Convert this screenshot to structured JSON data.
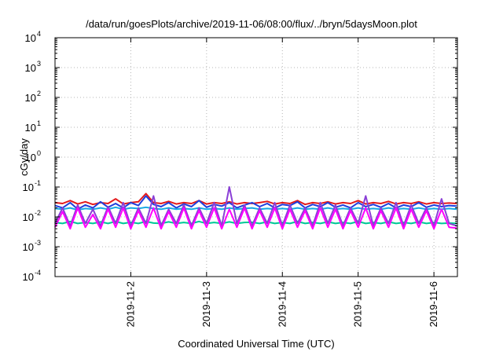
{
  "chart_data": {
    "type": "line",
    "title": "/data/run/goesPlots/archive/2019-11-06/08:00/flux/../bryn/5daysMoon.plot",
    "xlabel": "Coordinated Universal Time (UTC)",
    "ylabel": "cGy/day",
    "yscale": "log",
    "ylim": [
      0.0001,
      10000
    ],
    "xlim": [
      0.0,
      5.31
    ],
    "y_ticks": [
      {
        "value": -4,
        "base": "10",
        "exp": "-4"
      },
      {
        "value": -3,
        "base": "10",
        "exp": "-3"
      },
      {
        "value": -2,
        "base": "10",
        "exp": "-2"
      },
      {
        "value": -1,
        "base": "10",
        "exp": "-1"
      },
      {
        "value": 0,
        "base": "10",
        "exp": "0"
      },
      {
        "value": 1,
        "base": "10",
        "exp": "1"
      },
      {
        "value": 2,
        "base": "10",
        "exp": "2"
      },
      {
        "value": 3,
        "base": "10",
        "exp": "3"
      },
      {
        "value": 4,
        "base": "10",
        "exp": "4"
      }
    ],
    "x_ticks": [
      {
        "value": 1.0,
        "label": "2019-11-2"
      },
      {
        "value": 2.0,
        "label": "2019-11-3"
      },
      {
        "value": 3.0,
        "label": "2019-11-4"
      },
      {
        "value": 4.0,
        "label": "2019-11-5"
      },
      {
        "value": 5.0,
        "label": "2019-11-6"
      }
    ],
    "grid": true,
    "legend": "none",
    "series": [
      {
        "color": "#e41a1c",
        "x": [
          0.0,
          0.1,
          0.2,
          0.3,
          0.4,
          0.5,
          0.6,
          0.7,
          0.8,
          0.9,
          1.0,
          1.1,
          1.2,
          1.3,
          1.4,
          1.5,
          1.6,
          1.7,
          1.8,
          1.9,
          2.0,
          2.1,
          2.2,
          2.3,
          2.4,
          2.5,
          2.6,
          2.7,
          2.8,
          2.9,
          3.0,
          3.1,
          3.2,
          3.3,
          3.4,
          3.5,
          3.6,
          3.7,
          3.8,
          3.9,
          4.0,
          4.1,
          4.2,
          4.3,
          4.4,
          4.5,
          4.6,
          4.7,
          4.8,
          4.9,
          5.0,
          5.1,
          5.2,
          5.3
        ],
        "y": [
          0.03,
          0.028,
          0.035,
          0.027,
          0.032,
          0.026,
          0.03,
          0.028,
          0.04,
          0.027,
          0.03,
          0.032,
          0.06,
          0.03,
          0.028,
          0.033,
          0.027,
          0.03,
          0.028,
          0.035,
          0.027,
          0.03,
          0.028,
          0.032,
          0.027,
          0.03,
          0.028,
          0.03,
          0.033,
          0.027,
          0.03,
          0.028,
          0.035,
          0.026,
          0.03,
          0.028,
          0.032,
          0.027,
          0.03,
          0.028,
          0.035,
          0.027,
          0.03,
          0.028,
          0.033,
          0.027,
          0.03,
          0.028,
          0.032,
          0.027,
          0.03,
          0.028,
          0.029,
          0.028
        ]
      },
      {
        "color": "#1f3fdd",
        "x": [
          0.0,
          0.1,
          0.2,
          0.3,
          0.4,
          0.5,
          0.6,
          0.7,
          0.8,
          0.9,
          1.0,
          1.1,
          1.2,
          1.3,
          1.4,
          1.5,
          1.6,
          1.7,
          1.8,
          1.9,
          2.0,
          2.1,
          2.2,
          2.3,
          2.4,
          2.5,
          2.6,
          2.7,
          2.8,
          2.9,
          3.0,
          3.1,
          3.2,
          3.3,
          3.4,
          3.5,
          3.6,
          3.7,
          3.8,
          3.9,
          4.0,
          4.1,
          4.2,
          4.3,
          4.4,
          4.5,
          4.6,
          4.7,
          4.8,
          4.9,
          5.0,
          5.1,
          5.2,
          5.3
        ],
        "y": [
          0.024,
          0.02,
          0.03,
          0.018,
          0.025,
          0.02,
          0.032,
          0.021,
          0.028,
          0.02,
          0.03,
          0.024,
          0.05,
          0.026,
          0.022,
          0.03,
          0.02,
          0.027,
          0.022,
          0.035,
          0.021,
          0.026,
          0.023,
          0.03,
          0.02,
          0.025,
          0.03,
          0.022,
          0.028,
          0.02,
          0.026,
          0.024,
          0.032,
          0.02,
          0.026,
          0.022,
          0.03,
          0.021,
          0.025,
          0.02,
          0.03,
          0.022,
          0.026,
          0.021,
          0.028,
          0.02,
          0.025,
          0.022,
          0.03,
          0.021,
          0.025,
          0.022,
          0.024,
          0.023
        ]
      },
      {
        "color": "#17a9e3",
        "x": [
          0.0,
          0.1,
          0.2,
          0.3,
          0.4,
          0.5,
          0.6,
          0.7,
          0.8,
          0.9,
          1.0,
          1.1,
          1.2,
          1.3,
          1.4,
          1.5,
          1.6,
          1.7,
          1.8,
          1.9,
          2.0,
          2.1,
          2.2,
          2.3,
          2.4,
          2.5,
          2.6,
          2.7,
          2.8,
          2.9,
          3.0,
          3.1,
          3.2,
          3.3,
          3.4,
          3.5,
          3.6,
          3.7,
          3.8,
          3.9,
          4.0,
          4.1,
          4.2,
          4.3,
          4.4,
          4.5,
          4.6,
          4.7,
          4.8,
          4.9,
          5.0,
          5.1,
          5.2,
          5.3
        ],
        "y": [
          0.019,
          0.018,
          0.02,
          0.017,
          0.019,
          0.018,
          0.02,
          0.018,
          0.021,
          0.018,
          0.02,
          0.019,
          0.021,
          0.019,
          0.018,
          0.02,
          0.018,
          0.019,
          0.018,
          0.02,
          0.018,
          0.019,
          0.018,
          0.02,
          0.018,
          0.019,
          0.02,
          0.018,
          0.019,
          0.018,
          0.019,
          0.018,
          0.02,
          0.018,
          0.019,
          0.018,
          0.02,
          0.018,
          0.019,
          0.018,
          0.02,
          0.018,
          0.019,
          0.018,
          0.02,
          0.018,
          0.019,
          0.018,
          0.02,
          0.018,
          0.019,
          0.018,
          0.019,
          0.018
        ]
      },
      {
        "color": "#00c896",
        "x": [
          0.0,
          0.1,
          0.2,
          0.3,
          0.4,
          0.5,
          0.6,
          0.7,
          0.8,
          0.9,
          1.0,
          1.1,
          1.2,
          1.3,
          1.4,
          1.5,
          1.6,
          1.7,
          1.8,
          1.9,
          2.0,
          2.1,
          2.2,
          2.3,
          2.4,
          2.5,
          2.6,
          2.7,
          2.8,
          2.9,
          3.0,
          3.1,
          3.2,
          3.3,
          3.4,
          3.5,
          3.6,
          3.7,
          3.8,
          3.9,
          4.0,
          4.1,
          4.2,
          4.3,
          4.4,
          4.5,
          4.6,
          4.7,
          4.8,
          4.9,
          5.0,
          5.1,
          5.2,
          5.3
        ],
        "y": [
          0.0065,
          0.006,
          0.007,
          0.006,
          0.0065,
          0.006,
          0.0068,
          0.006,
          0.007,
          0.006,
          0.0066,
          0.006,
          0.007,
          0.0062,
          0.006,
          0.0068,
          0.006,
          0.0065,
          0.006,
          0.007,
          0.006,
          0.0065,
          0.006,
          0.0068,
          0.006,
          0.0065,
          0.0066,
          0.006,
          0.0068,
          0.006,
          0.0065,
          0.006,
          0.007,
          0.006,
          0.0065,
          0.006,
          0.0068,
          0.006,
          0.0065,
          0.006,
          0.007,
          0.006,
          0.0065,
          0.006,
          0.0068,
          0.006,
          0.0065,
          0.006,
          0.0068,
          0.006,
          0.0065,
          0.006,
          0.0062,
          0.006
        ]
      },
      {
        "color": "#8a3fd6",
        "x": [
          0.0,
          0.1,
          0.2,
          0.3,
          0.4,
          0.5,
          0.6,
          0.7,
          0.8,
          0.9,
          1.0,
          1.1,
          1.2,
          1.3,
          1.4,
          1.5,
          1.6,
          1.7,
          1.8,
          1.9,
          2.0,
          2.1,
          2.2,
          2.3,
          2.4,
          2.5,
          2.6,
          2.7,
          2.8,
          2.9,
          3.0,
          3.1,
          3.2,
          3.3,
          3.4,
          3.5,
          3.6,
          3.7,
          3.8,
          3.9,
          4.0,
          4.1,
          4.2,
          4.3,
          4.4,
          4.5,
          4.6,
          4.7,
          4.8,
          4.9,
          5.0,
          5.1,
          5.2,
          5.3
        ],
        "y": [
          0.006,
          0.02,
          0.005,
          0.025,
          0.006,
          0.018,
          0.005,
          0.022,
          0.006,
          0.03,
          0.005,
          0.02,
          0.006,
          0.05,
          0.005,
          0.018,
          0.006,
          0.025,
          0.005,
          0.02,
          0.006,
          0.03,
          0.005,
          0.1,
          0.006,
          0.025,
          0.005,
          0.02,
          0.006,
          0.03,
          0.005,
          0.025,
          0.006,
          0.02,
          0.005,
          0.03,
          0.006,
          0.025,
          0.005,
          0.02,
          0.006,
          0.05,
          0.005,
          0.02,
          0.006,
          0.03,
          0.005,
          0.025,
          0.006,
          0.02,
          0.005,
          0.04,
          0.006,
          0.005
        ]
      },
      {
        "color": "#ff00ff",
        "x": [
          0.0,
          0.1,
          0.2,
          0.3,
          0.4,
          0.5,
          0.6,
          0.7,
          0.8,
          0.9,
          1.0,
          1.1,
          1.2,
          1.3,
          1.4,
          1.5,
          1.6,
          1.7,
          1.8,
          1.9,
          2.0,
          2.1,
          2.2,
          2.3,
          2.4,
          2.5,
          2.6,
          2.7,
          2.8,
          2.9,
          3.0,
          3.1,
          3.2,
          3.3,
          3.4,
          3.5,
          3.6,
          3.7,
          3.8,
          3.9,
          4.0,
          4.1,
          4.2,
          4.3,
          4.4,
          4.5,
          4.6,
          4.7,
          4.8,
          4.9,
          5.0,
          5.1,
          5.2,
          5.3
        ],
        "y": [
          0.0045,
          0.015,
          0.004,
          0.02,
          0.0045,
          0.012,
          0.004,
          0.018,
          0.0045,
          0.02,
          0.004,
          0.016,
          0.0045,
          0.02,
          0.004,
          0.015,
          0.0045,
          0.02,
          0.004,
          0.016,
          0.0045,
          0.02,
          0.004,
          0.018,
          0.0045,
          0.02,
          0.004,
          0.016,
          0.0045,
          0.02,
          0.004,
          0.018,
          0.0045,
          0.016,
          0.004,
          0.02,
          0.0045,
          0.018,
          0.004,
          0.016,
          0.0045,
          0.02,
          0.004,
          0.016,
          0.0045,
          0.02,
          0.004,
          0.018,
          0.0045,
          0.016,
          0.004,
          0.018,
          0.0045,
          0.0042
        ]
      }
    ]
  }
}
